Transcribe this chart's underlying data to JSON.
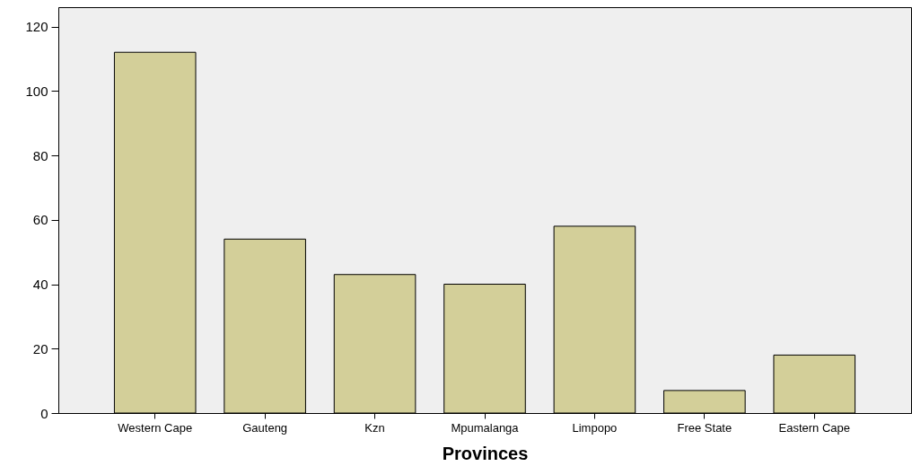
{
  "chart_data": {
    "type": "bar",
    "xlabel": "Provinces",
    "categories": [
      "Western Cape",
      "Gauteng",
      "Kzn",
      "Mpumalanga",
      "Limpopo",
      "Free State",
      "Eastern Cape"
    ],
    "values": [
      112,
      54,
      43,
      40,
      58,
      7,
      18
    ],
    "color": "#d3cf99",
    "ylim": [
      0,
      126
    ],
    "yticks": [
      0,
      20,
      40,
      60,
      80,
      100,
      120
    ]
  }
}
